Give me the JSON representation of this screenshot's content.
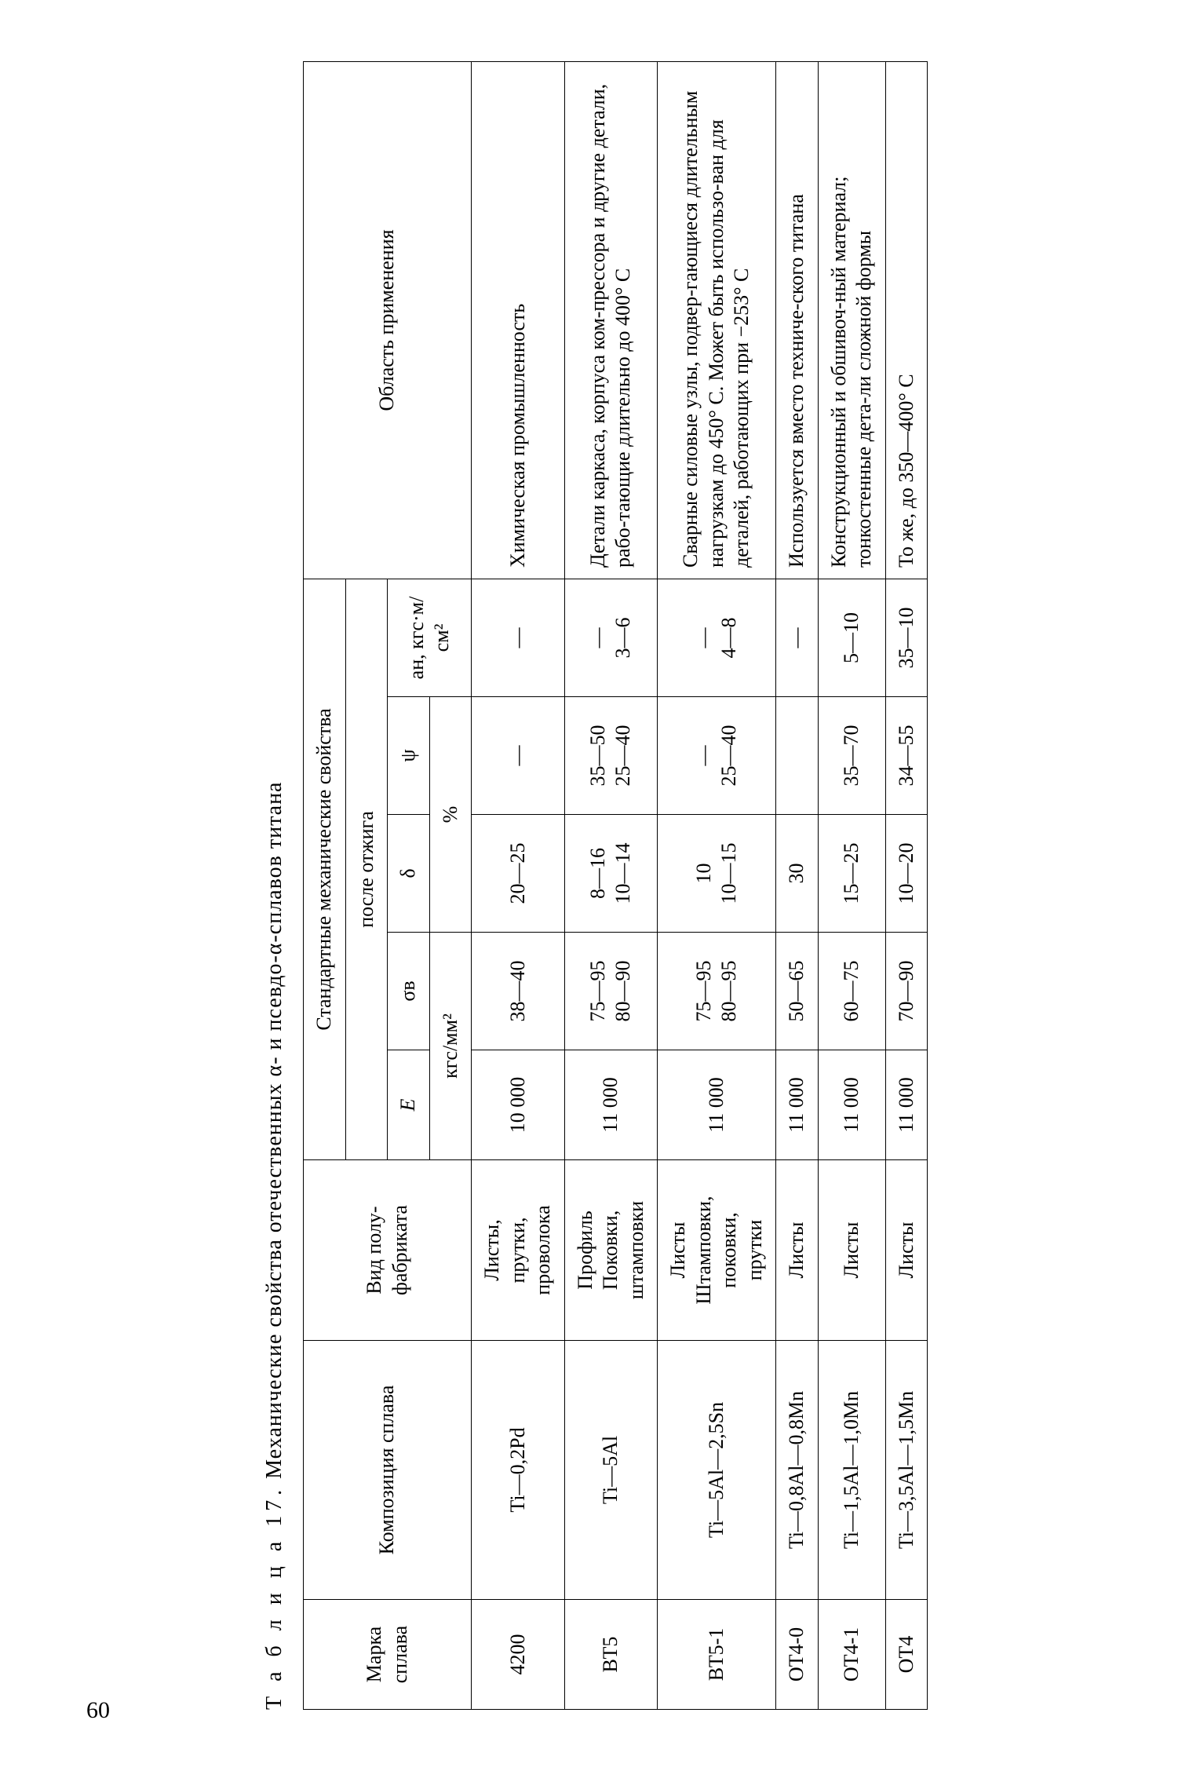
{
  "caption_prefix": "Т а б л и ц а 17.",
  "caption_rest": " Механические свойства отечественных α- и псевдо-α-сплавов титана",
  "page_number": "60",
  "headers": {
    "marka": "Марка сплава",
    "composition": "Композиция сплава",
    "fabrikat": "Вид полу-фабриката",
    "group_mech": "Стандартные механические свойства",
    "group_anneal": "после отжига",
    "E": "E",
    "sigma_v": "σв",
    "delta": "δ",
    "psi": "ψ",
    "a_n": "aн, кгс·м/см²",
    "unit_kgf_mm2": "кгс/мм²",
    "unit_percent": "%",
    "application": "Область применения"
  },
  "rows": [
    {
      "marka": "4200",
      "composition": "Ti—0,2Pd",
      "fabrikat": [
        "Листы,",
        "прутки,",
        "проволока"
      ],
      "E": "10 000",
      "sigma_v": "38—40",
      "delta": "20—25",
      "psi": "—",
      "a_n": "—",
      "application": "Химическая промышленность"
    },
    {
      "marka": "ВТ5",
      "composition": "Ti—5Al",
      "fabrikat": [
        "Профиль",
        "Поковки,",
        "штамповки"
      ],
      "E": "11 000",
      "sigma_v": [
        "75—95",
        "80—90"
      ],
      "delta": [
        "8—16",
        "10—14"
      ],
      "psi": [
        "35—50",
        "25—40"
      ],
      "a_n": [
        "—",
        "3—6"
      ],
      "application": "Детали каркаса, корпуса ком-прессора и другие детали, рабо-тающие длительно до 400° С"
    },
    {
      "marka": "ВТ5-1",
      "composition": "Ti—5Al—2,5Sn",
      "fabrikat": [
        "Листы",
        "Штамповки,",
        "поковки,",
        "прутки"
      ],
      "E": "11 000",
      "sigma_v": [
        "75—95",
        "80—95"
      ],
      "delta": [
        "10",
        "10—15"
      ],
      "psi": [
        "—",
        "25—40"
      ],
      "a_n": [
        "—",
        "4—8"
      ],
      "application": "Сварные силовые узлы, подвер-гающиеся длительным нагрузкам до 450° С. Может быть использо-ван для деталей, работающих при −253° С"
    },
    {
      "marka": "ОТ4-0",
      "composition": "Ti—0,8Al—0,8Mn",
      "fabrikat": [
        "Листы"
      ],
      "E": "11 000",
      "sigma_v": "50—65",
      "delta": "30",
      "psi": "",
      "a_n": "—",
      "application": "Используется вместо техниче-ского титана"
    },
    {
      "marka": "ОТ4-1",
      "composition": "Ti—1,5Al—1,0Mn",
      "fabrikat": [
        "Листы"
      ],
      "E": "11 000",
      "sigma_v": "60—75",
      "delta": "15—25",
      "psi": "35—70",
      "a_n": "5—10",
      "application": "Конструкционный и обшивоч-ный материал; тонкостенные дета-ли сложной формы"
    },
    {
      "marka": "ОТ4",
      "composition": "Ti—3,5Al—1,5Mn",
      "fabrikat": [
        "Листы"
      ],
      "E": "11 000",
      "sigma_v": "70—90",
      "delta": "10—20",
      "psi": "34—55",
      "a_n": "35—10",
      "application": "То же, до 350—400° С"
    }
  ]
}
